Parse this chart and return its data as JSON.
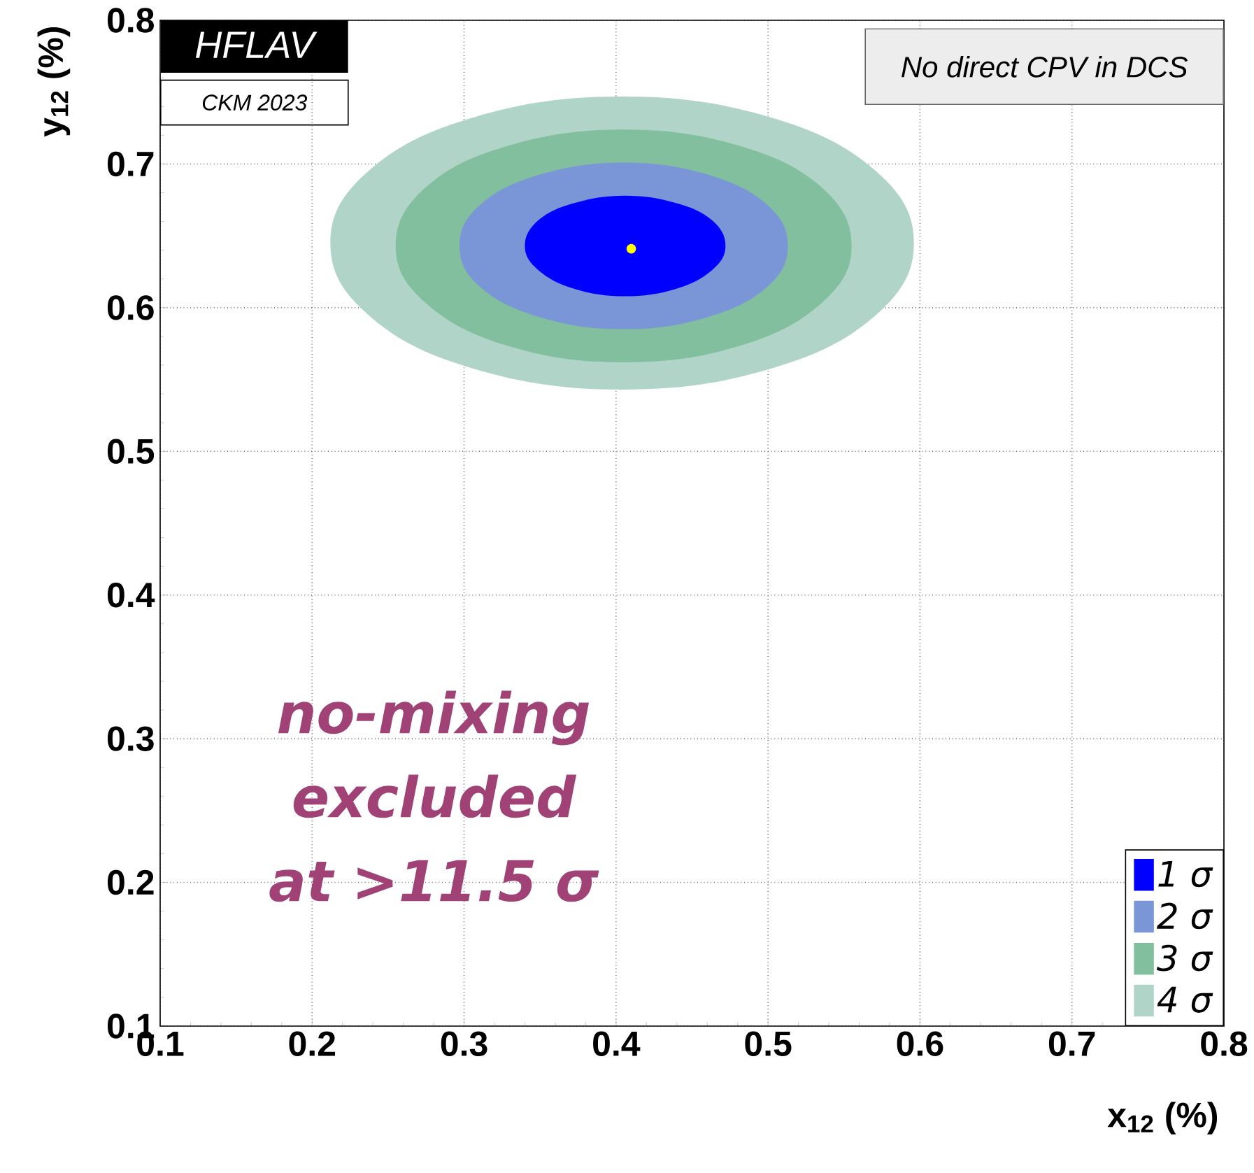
{
  "chart_data": {
    "type": "area",
    "xlabel": "x$_{12}$ (%)",
    "ylabel": "y$_{12}$ (%)",
    "annotations": [
      "HFLAV",
      "CKM 2023",
      "No direct CPV in DCS",
      "no-mixing excluded at >11.5 σ"
    ],
    "xlim": [
      0.1,
      0.8
    ],
    "ylim": [
      0.1,
      0.8
    ],
    "xticks": [
      0.1,
      0.2,
      0.3,
      0.4,
      0.5,
      0.6,
      0.7,
      0.8
    ],
    "yticks": [
      0.1,
      0.2,
      0.3,
      0.4,
      0.5,
      0.6,
      0.7,
      0.8
    ],
    "grid": true,
    "legend": "bottom right",
    "series": [
      {
        "name": "1 σ",
        "color": "#0000ff",
        "x": [
          0.472,
          0.463,
          0.439,
          0.406,
          0.373,
          0.349,
          0.34,
          0.349,
          0.373,
          0.406,
          0.439,
          0.463
        ],
        "values": [
          0.643,
          0.661,
          0.673,
          0.678,
          0.673,
          0.661,
          0.643,
          0.626,
          0.613,
          0.608,
          0.613,
          0.626
        ]
      },
      {
        "name": "2 σ",
        "color": "#7b96d6",
        "x": [
          0.513,
          0.499,
          0.459,
          0.405,
          0.351,
          0.311,
          0.297,
          0.311,
          0.351,
          0.405,
          0.459,
          0.499
        ],
        "values": [
          0.643,
          0.672,
          0.693,
          0.701,
          0.693,
          0.672,
          0.643,
          0.614,
          0.593,
          0.585,
          0.593,
          0.614
        ]
      },
      {
        "name": "3 σ",
        "color": "#82bf9e",
        "x": [
          0.555,
          0.535,
          0.48,
          0.405,
          0.33,
          0.275,
          0.255,
          0.275,
          0.33,
          0.405,
          0.48,
          0.535
        ],
        "values": [
          0.643,
          0.684,
          0.713,
          0.724,
          0.713,
          0.684,
          0.643,
          0.603,
          0.573,
          0.562,
          0.573,
          0.603
        ]
      },
      {
        "name": "4 σ",
        "color": "#b0d5c8",
        "x": [
          0.596,
          0.57,
          0.5,
          0.404,
          0.308,
          0.238,
          0.212,
          0.238,
          0.308,
          0.404,
          0.5,
          0.57
        ],
        "values": [
          0.645,
          0.696,
          0.733,
          0.747,
          0.733,
          0.696,
          0.645,
          0.594,
          0.557,
          0.543,
          0.557,
          0.594
        ]
      },
      {
        "type": "scatter",
        "marker": "circle",
        "color": "#ffff00",
        "x": [
          0.41
        ],
        "values": [
          0.641
        ]
      }
    ]
  }
}
